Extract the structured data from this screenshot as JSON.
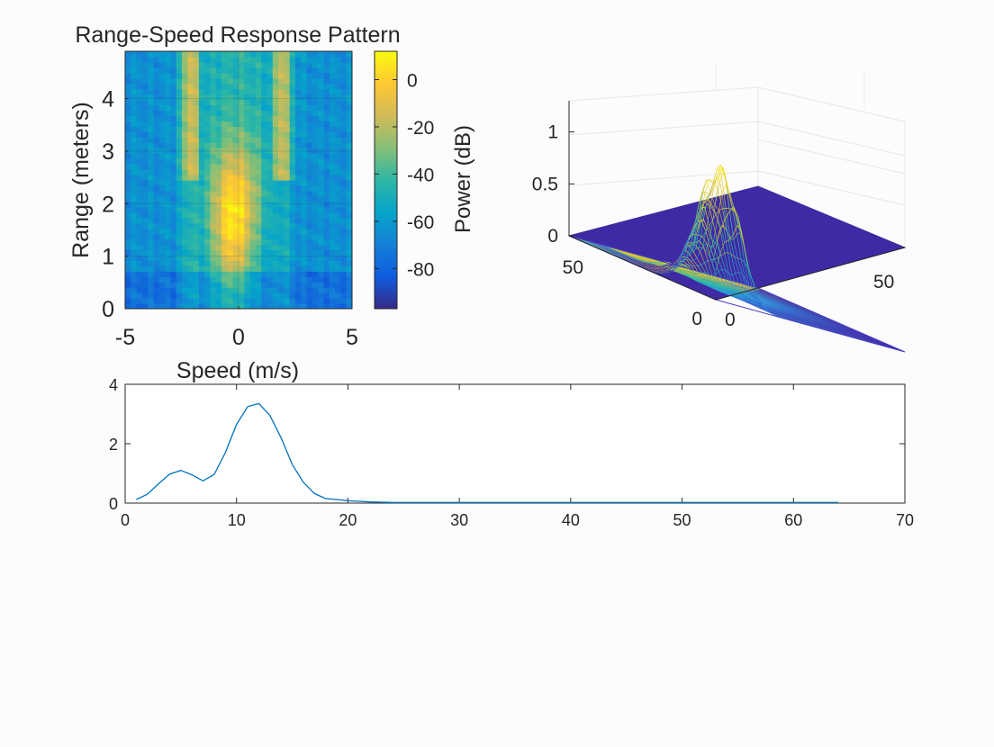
{
  "chart_data": [
    {
      "type": "heatmap",
      "title": "Range-Speed Response Pattern",
      "xlabel": "Speed (m/s)",
      "ylabel": "Range (meters)",
      "xlim": [
        -5,
        5
      ],
      "ylim": [
        0,
        4.9
      ],
      "xticks": [
        -5,
        0,
        5
      ],
      "yticks": [
        0,
        1,
        2,
        3,
        4
      ],
      "colorbar": {
        "label": "Power (dB)",
        "range": [
          -97,
          12
        ],
        "ticks": [
          0,
          -20,
          -40,
          -60,
          -80
        ],
        "colormap": "parula"
      },
      "grid": true
    },
    {
      "type": "surface",
      "zticks": [
        0,
        0.5,
        1
      ],
      "xticks": [
        0,
        50
      ],
      "yticks": [
        0,
        50
      ],
      "zlim": [
        0,
        1.3
      ],
      "peak_value": 1.15,
      "grid": true
    },
    {
      "type": "line",
      "xlim": [
        0,
        70
      ],
      "ylim": [
        0,
        4
      ],
      "xticks": [
        0,
        10,
        20,
        30,
        40,
        50,
        60,
        70
      ],
      "yticks": [
        0,
        2,
        4
      ],
      "color": "#0072bd",
      "x": [
        1,
        2,
        3,
        4,
        5,
        6,
        7,
        8,
        9,
        10,
        11,
        12,
        13,
        14,
        15,
        16,
        17,
        18,
        19,
        20,
        21,
        22,
        23,
        24,
        25,
        26,
        27,
        28,
        29,
        30,
        31,
        32,
        33,
        34,
        35,
        36,
        37,
        38,
        39,
        40,
        41,
        42,
        43,
        44,
        45,
        46,
        47,
        48,
        49,
        50,
        51,
        52,
        53,
        54,
        55,
        56,
        57,
        58,
        59,
        60,
        61,
        62,
        63,
        64
      ],
      "y": [
        0.12,
        0.3,
        0.65,
        0.98,
        1.1,
        0.95,
        0.75,
        0.97,
        1.7,
        2.65,
        3.25,
        3.35,
        2.95,
        2.2,
        1.3,
        0.7,
        0.32,
        0.15,
        0.12,
        0.08,
        0.06,
        0.04,
        0.03,
        0.02,
        0.02,
        0.02,
        0.02,
        0.02,
        0.02,
        0.02,
        0.02,
        0.02,
        0.02,
        0.02,
        0.02,
        0.02,
        0.02,
        0.02,
        0.02,
        0.02,
        0.02,
        0.02,
        0.02,
        0.02,
        0.02,
        0.02,
        0.02,
        0.02,
        0.02,
        0.02,
        0.02,
        0.02,
        0.02,
        0.02,
        0.02,
        0.02,
        0.02,
        0.02,
        0.02,
        0.02,
        0.02,
        0.02,
        0.02,
        0.02
      ]
    }
  ]
}
